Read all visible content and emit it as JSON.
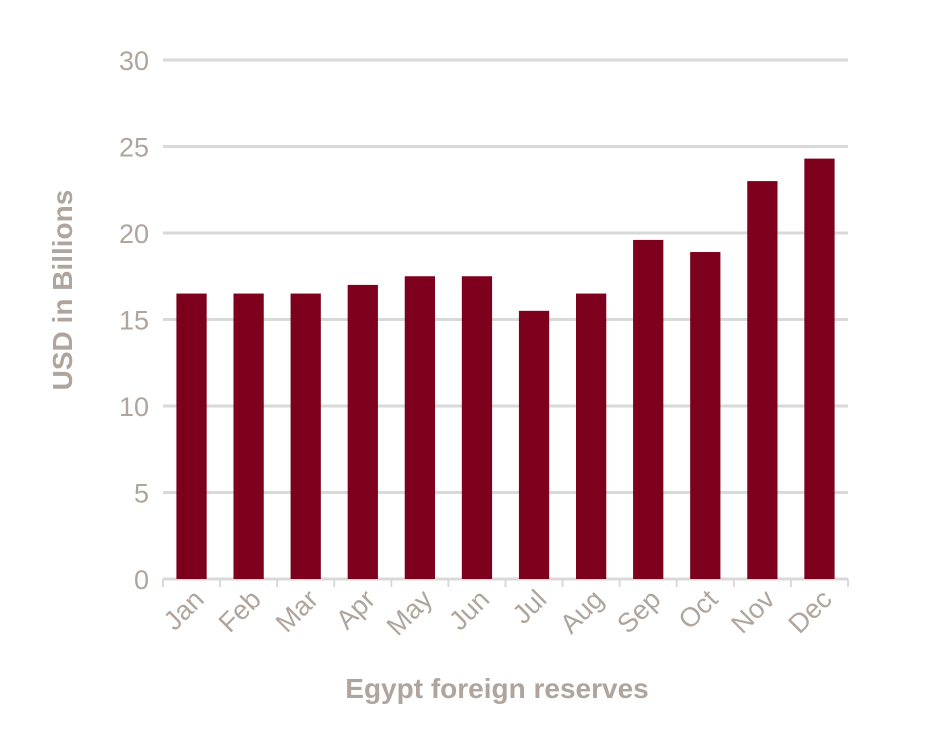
{
  "chart_data": {
    "type": "bar",
    "x_label": "Egypt foreign reserves",
    "y_label": "USD in Billions",
    "categories": [
      "Jan",
      "Feb",
      "Mar",
      "Apr",
      "May",
      "Jun",
      "Jul",
      "Aug",
      "Sep",
      "Oct",
      "Nov",
      "Dec"
    ],
    "values": [
      16.5,
      16.5,
      16.5,
      17.0,
      17.5,
      17.5,
      15.5,
      16.5,
      19.6,
      18.9,
      23.0,
      24.3
    ],
    "color": "#7d001c",
    "ylim": [
      0,
      30
    ],
    "yticks": [
      0,
      5,
      10,
      15,
      20,
      25,
      30
    ],
    "grid": true
  }
}
